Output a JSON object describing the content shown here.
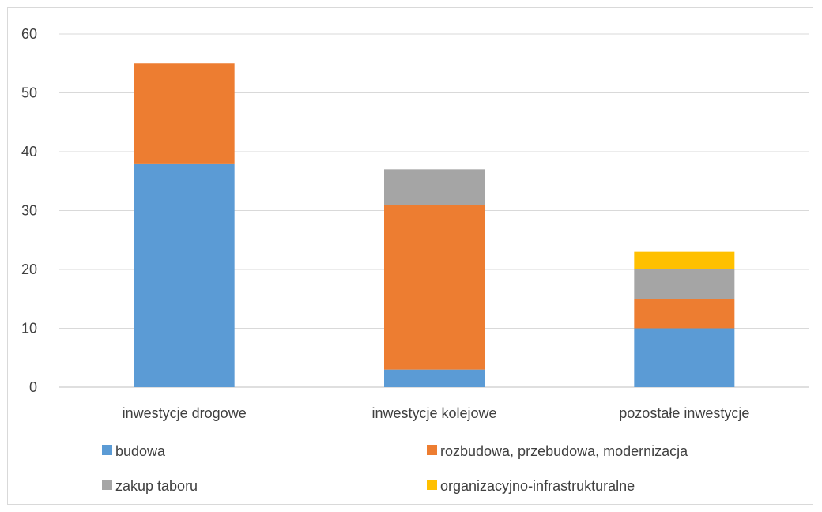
{
  "chart_data": {
    "type": "bar",
    "stacked": true,
    "categories": [
      "inwestycje drogowe",
      "inwestycje kolejowe",
      "pozostałe inwestycje"
    ],
    "series": [
      {
        "name": "budowa",
        "values": [
          38,
          3,
          10
        ],
        "color": "#5b9bd5"
      },
      {
        "name": "rozbudowa, przebudowa, modernizacja",
        "values": [
          17,
          28,
          5
        ],
        "color": "#ed7d31"
      },
      {
        "name": "zakup taboru",
        "values": [
          0,
          6,
          5
        ],
        "color": "#a5a5a5"
      },
      {
        "name": "organizacyjno-infrastrukturalne",
        "values": [
          0,
          0,
          3
        ],
        "color": "#ffc000"
      }
    ],
    "title": "",
    "xlabel": "",
    "ylabel": "",
    "ylim": [
      0,
      60
    ],
    "yticks": [
      0,
      10,
      20,
      30,
      40,
      50,
      60
    ],
    "grid": true,
    "legend_position": "bottom"
  }
}
